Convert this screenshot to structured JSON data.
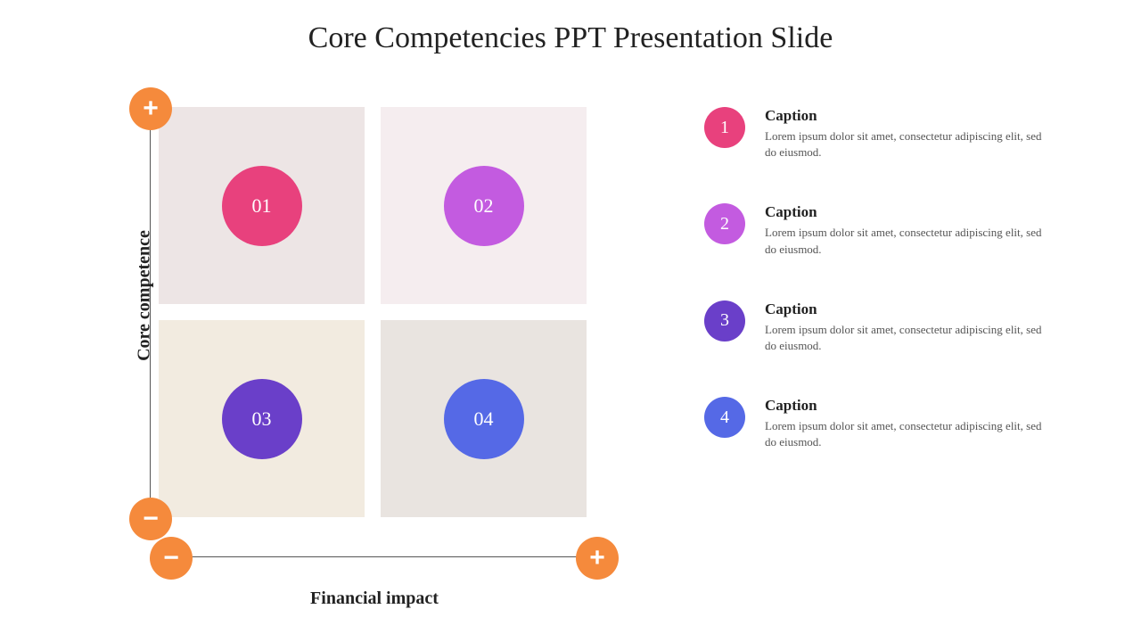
{
  "title": "Core Competencies PPT Presentation Slide",
  "axes": {
    "x_label": "Financial impact",
    "y_label": "Core competence",
    "plus_color": "#f58a3c",
    "minus_color": "#f58a3c",
    "plus_glyph": "+",
    "minus_glyph": "−"
  },
  "quadrants": [
    {
      "label": "01",
      "circle_color": "#e8417d",
      "bg_color": "#ede5e5"
    },
    {
      "label": "02",
      "circle_color": "#c35be0",
      "bg_color": "#f5edef"
    },
    {
      "label": "03",
      "circle_color": "#6a3fc9",
      "bg_color": "#f2ebe0"
    },
    {
      "label": "04",
      "circle_color": "#5569e6",
      "bg_color": "#e9e4e0"
    }
  ],
  "captions": [
    {
      "num": "1",
      "circle_color": "#e8417d",
      "title": "Caption",
      "body": "Lorem ipsum dolor sit amet, consectetur adipiscing elit, sed do eiusmod."
    },
    {
      "num": "2",
      "circle_color": "#c35be0",
      "title": "Caption",
      "body": "Lorem ipsum dolor sit amet, consectetur adipiscing elit, sed do eiusmod."
    },
    {
      "num": "3",
      "circle_color": "#6a3fc9",
      "title": "Caption",
      "body": "Lorem ipsum dolor sit amet, consectetur adipiscing elit, sed do eiusmod."
    },
    {
      "num": "4",
      "circle_color": "#5569e6",
      "title": "Caption",
      "body": "Lorem ipsum dolor sit amet, consectetur adipiscing elit, sed do eiusmod."
    }
  ],
  "style": {
    "background": "#ffffff",
    "title_fontsize": 34,
    "title_color": "#222222",
    "axis_line_color": "#555555",
    "axis_label_fontsize": 20,
    "quad_circle_diameter": 90,
    "quad_circle_fontsize": 22,
    "caption_circle_diameter": 46,
    "caption_title_fontsize": 17,
    "caption_body_fontsize": 13,
    "caption_body_color": "#555555"
  }
}
